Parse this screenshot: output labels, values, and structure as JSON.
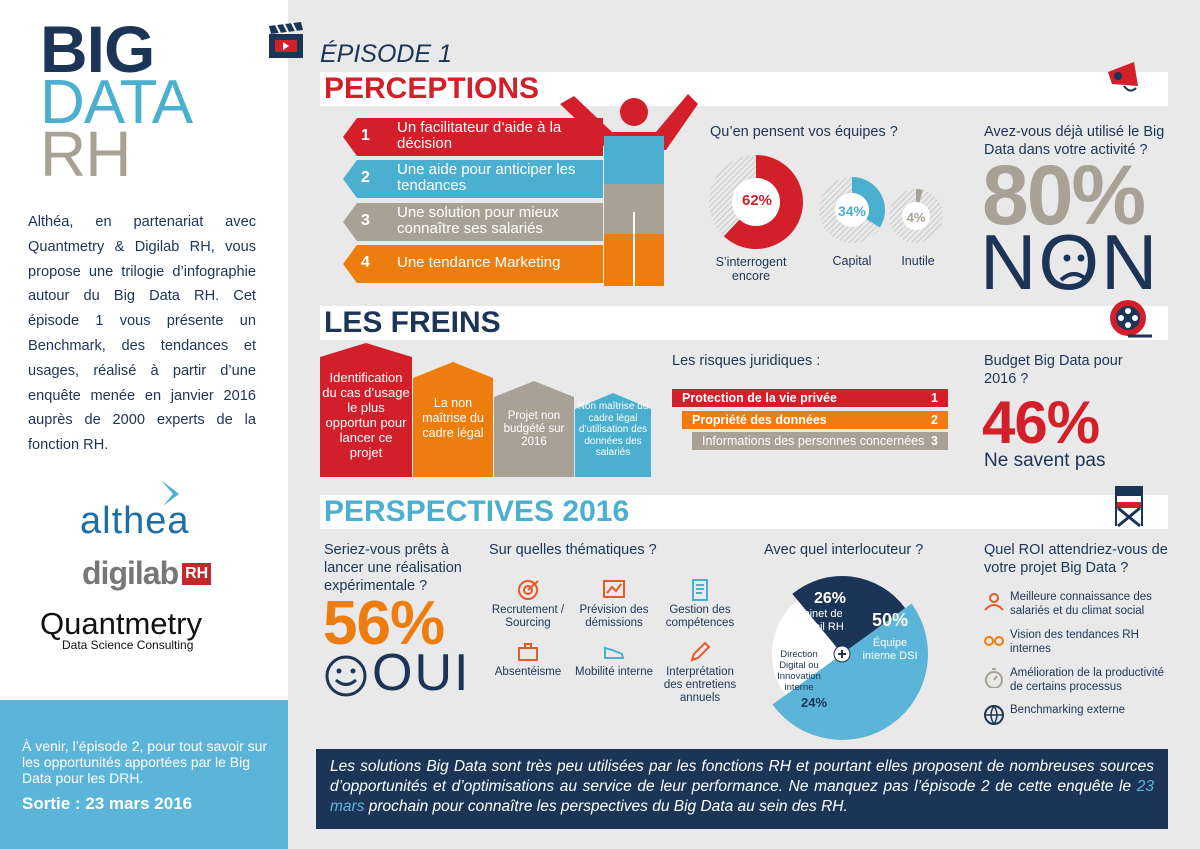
{
  "sidebar": {
    "title_big": "BIG",
    "title_data": "DATA",
    "title_rh": "RH",
    "intro": "Althéa, en partenariat avec Quantmetry & Digilab RH, vous propose une trilogie d’infographie autour du Big Data RH. Cet épisode 1 vous présente un Benchmark, des tendances et usages, réalisé à partir d’une enquête menée en janvier 2016 auprès de 2000 experts de la fonction RH.",
    "logo_althea": "althea",
    "logo_digilab": "digilab",
    "logo_digilab_rh": "RH",
    "logo_quantmetry": "Quantmetry",
    "logo_quantmetry_sub": "Data Science Consulting",
    "coming_text": "À venir, l’épisode 2, pour tout savoir sur les opportunités apportées par le Big Data pour les DRH.",
    "release": "Sortie : 23 mars 2016"
  },
  "episode": "ÉPISODE 1",
  "perceptions": {
    "title": "PERCEPTIONS",
    "items": [
      {
        "num": "1",
        "label": "Un facilitateur d’aide à la décision",
        "color": "#d21f2a"
      },
      {
        "num": "2",
        "label": "Une aide pour anticiper les tendances",
        "color": "#4bb0cf"
      },
      {
        "num": "3",
        "label": "Une solution pour mieux connaître ses salariés",
        "color": "#a8a296"
      },
      {
        "num": "4",
        "label": "Une tendance Marketing",
        "color": "#ee7d10"
      }
    ],
    "teams_question": "Qu’en pensent vos équipes ?",
    "teams": [
      {
        "value": "62%",
        "label": "S’interrogent encore",
        "color": "#d21f2a"
      },
      {
        "value": "34%",
        "label": "Capital",
        "color": "#4bb0cf"
      },
      {
        "value": "4%",
        "label": "Inutile",
        "color": "#a8a296"
      }
    ],
    "used_question": "Avez-vous déjà utilisé le Big Data dans votre activité ?",
    "used_value": "80%",
    "used_answer": "NON"
  },
  "freins": {
    "title": "LES FREINS",
    "houses": [
      {
        "label": "Identification du cas d’usage le plus opportun pour lancer ce projet",
        "color": "#d21f2a"
      },
      {
        "label": "La non maîtrise du cadre légal",
        "color": "#ee7d10"
      },
      {
        "label": "Projet non budgété sur 2016",
        "color": "#a8a296"
      },
      {
        "label": "Non maîtrise du cadre légal d’utilisation des données des salariés",
        "color": "#4bb0cf"
      }
    ],
    "risks_question": "Les risques juridiques :",
    "risks": [
      {
        "label": "Protection de la vie privée",
        "num": "1",
        "color": "#d21f2a"
      },
      {
        "label": "Propriété des données",
        "num": "2",
        "color": "#ee7d10"
      },
      {
        "label": "Informations des personnes concernées",
        "num": "3",
        "color": "#a8a296"
      }
    ],
    "budget_question": "Budget Big Data pour 2016 ?",
    "budget_value": "46%",
    "budget_label": "Ne savent pas"
  },
  "perspectives": {
    "title": "PERSPECTIVES 2016",
    "ready_question": "Seriez-vous prêts à lancer une réalisation expérimentale ?",
    "ready_value": "56%",
    "ready_answer": "OUI",
    "themes_question": "Sur quelles thématiques ?",
    "themes": [
      {
        "label": "Recrutement / Sourcing",
        "icon": "target-icon"
      },
      {
        "label": "Prévision des démissions",
        "icon": "chart-icon"
      },
      {
        "label": "Gestion des compétences",
        "icon": "document-icon"
      },
      {
        "label": "Absentéisme",
        "icon": "briefcase-icon"
      },
      {
        "label": "Mobilité interne",
        "icon": "shoe-icon"
      },
      {
        "label": "Interprétation des entretiens annuels",
        "icon": "pencil-icon"
      }
    ],
    "contact_question": "Avec quel interlocuteur ?",
    "contacts": [
      {
        "value": "26%",
        "label": "Cabinet de Conseil RH"
      },
      {
        "value": "50%",
        "label": "Équipe interne DSI"
      },
      {
        "value": "24%",
        "label": "Direction Digital ou Innovation interne"
      }
    ],
    "roi_question": "Quel ROI attendriez-vous de votre projet Big Data ?",
    "roi": [
      {
        "label": "Meilleure connaissance des salariés et du climat social",
        "icon": "people-icon"
      },
      {
        "label": "Vision des tendances RH internes",
        "icon": "glasses-icon"
      },
      {
        "label": "Amélioration de la productivité de certains processus",
        "icon": "stopwatch-icon"
      },
      {
        "label": "Benchmarking externe",
        "icon": "globe-icon"
      }
    ]
  },
  "quote": {
    "part1": "Les solutions Big Data sont très peu utilisées par les fonctions RH et pourtant elles proposent de nombreuses sources d’opportunités et d’optimisations au service de leur performance. Ne manquez pas l’épisode 2 de cette enquête le ",
    "highlight": "23 mars",
    "part2": " prochain pour connaître les perspectives du Big Data au sein des RH."
  },
  "colors": {
    "navy": "#1c3557",
    "red": "#d21f2a",
    "blue": "#4bb0cf",
    "grey": "#a8a296",
    "orange": "#ee7d10"
  }
}
